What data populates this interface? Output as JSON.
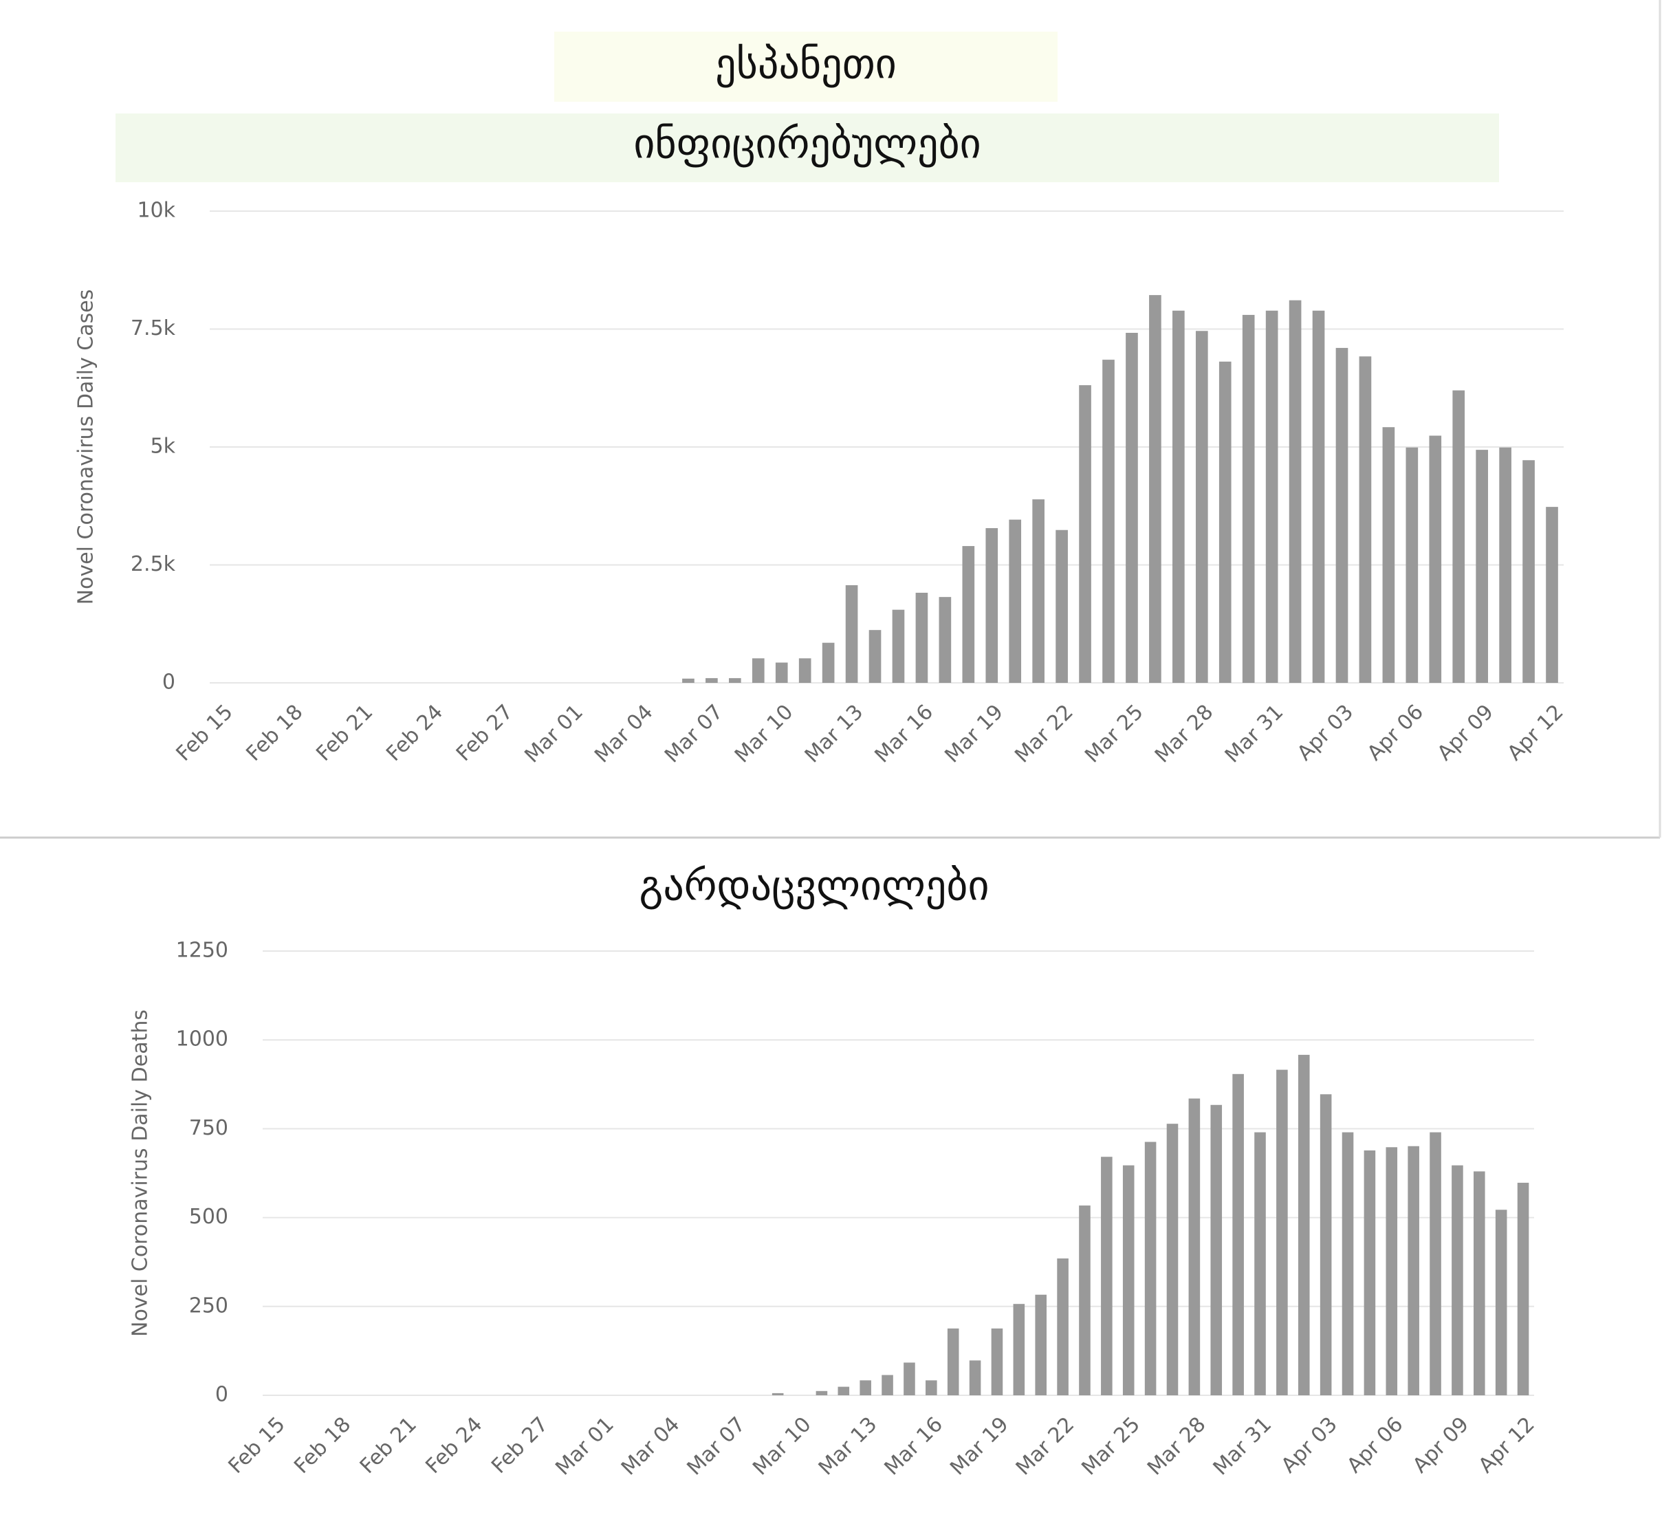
{
  "page_title": "ესპანეთი",
  "chart_data": [
    {
      "type": "bar",
      "title": "ინფიცირებულები",
      "ylabel": "Novel Coronavirus Daily Cases",
      "color": "#999999",
      "grid": true,
      "categories": [
        "Feb 15",
        null,
        null,
        "Feb 18",
        null,
        null,
        "Feb 21",
        null,
        null,
        "Feb 24",
        null,
        null,
        "Feb 27",
        null,
        null,
        "Mar 01",
        null,
        null,
        "Mar 04",
        null,
        null,
        "Mar 07",
        null,
        null,
        "Mar 10",
        null,
        null,
        "Mar 13",
        null,
        null,
        "Mar 16",
        null,
        null,
        "Mar 19",
        null,
        null,
        "Mar 22",
        null,
        null,
        "Mar 25",
        null,
        null,
        "Mar 28",
        null,
        null,
        "Mar 31",
        null,
        null,
        "Apr 03",
        null,
        null,
        "Apr 06",
        null,
        null,
        "Apr 09",
        null,
        null,
        "Apr 12"
      ],
      "values": [
        0,
        0,
        0,
        0,
        0,
        0,
        0,
        0,
        0,
        0,
        0,
        0,
        0,
        0,
        0,
        0,
        0,
        0,
        0,
        0,
        90,
        100,
        100,
        520,
        430,
        520,
        850,
        2070,
        1120,
        1550,
        1910,
        1820,
        2900,
        3280,
        3460,
        3890,
        3240,
        6310,
        6850,
        7420,
        8220,
        7890,
        7460,
        6810,
        7800,
        7890,
        8110,
        7890,
        7100,
        6920,
        5420,
        4990,
        5240,
        6200,
        4940,
        4990,
        4720,
        3730
      ],
      "ylim": [
        0,
        10000
      ],
      "yticks": [
        0,
        {
          "value": 2500,
          "label": "2.5k"
        },
        {
          "value": 5000,
          "label": "5k"
        },
        {
          "value": 7500,
          "label": "7.5k"
        },
        {
          "value": 10000,
          "label": "10k"
        }
      ]
    },
    {
      "type": "bar",
      "title": "გარდაცვლილები",
      "ylabel": "Novel Coronavirus Daily Deaths",
      "color": "#999999",
      "grid": true,
      "categories": [
        "Feb 15",
        null,
        null,
        "Feb 18",
        null,
        null,
        "Feb 21",
        null,
        null,
        "Feb 24",
        null,
        null,
        "Feb 27",
        null,
        null,
        "Mar 01",
        null,
        null,
        "Mar 04",
        null,
        null,
        "Mar 07",
        null,
        null,
        "Mar 10",
        null,
        null,
        "Mar 13",
        null,
        null,
        "Mar 16",
        null,
        null,
        "Mar 19",
        null,
        null,
        "Mar 22",
        null,
        null,
        "Mar 25",
        null,
        null,
        "Mar 28",
        null,
        null,
        "Mar 31",
        null,
        null,
        "Apr 03",
        null,
        null,
        "Apr 06",
        null,
        null,
        "Apr 09",
        null,
        null,
        "Apr 12"
      ],
      "values": [
        0,
        0,
        0,
        0,
        0,
        0,
        0,
        0,
        0,
        0,
        0,
        0,
        0,
        0,
        0,
        0,
        0,
        0,
        0,
        0,
        0,
        0,
        0,
        6,
        0,
        12,
        24,
        42,
        57,
        92,
        42,
        188,
        98,
        188,
        257,
        283,
        385,
        534,
        671,
        647,
        713,
        764,
        835,
        817,
        904,
        740,
        916,
        958,
        847,
        740,
        689,
        698,
        701,
        740,
        647,
        630,
        522,
        598
      ],
      "ylim": [
        0,
        1250
      ],
      "yticks": [
        0,
        250,
        500,
        750,
        1000,
        1250
      ]
    }
  ]
}
